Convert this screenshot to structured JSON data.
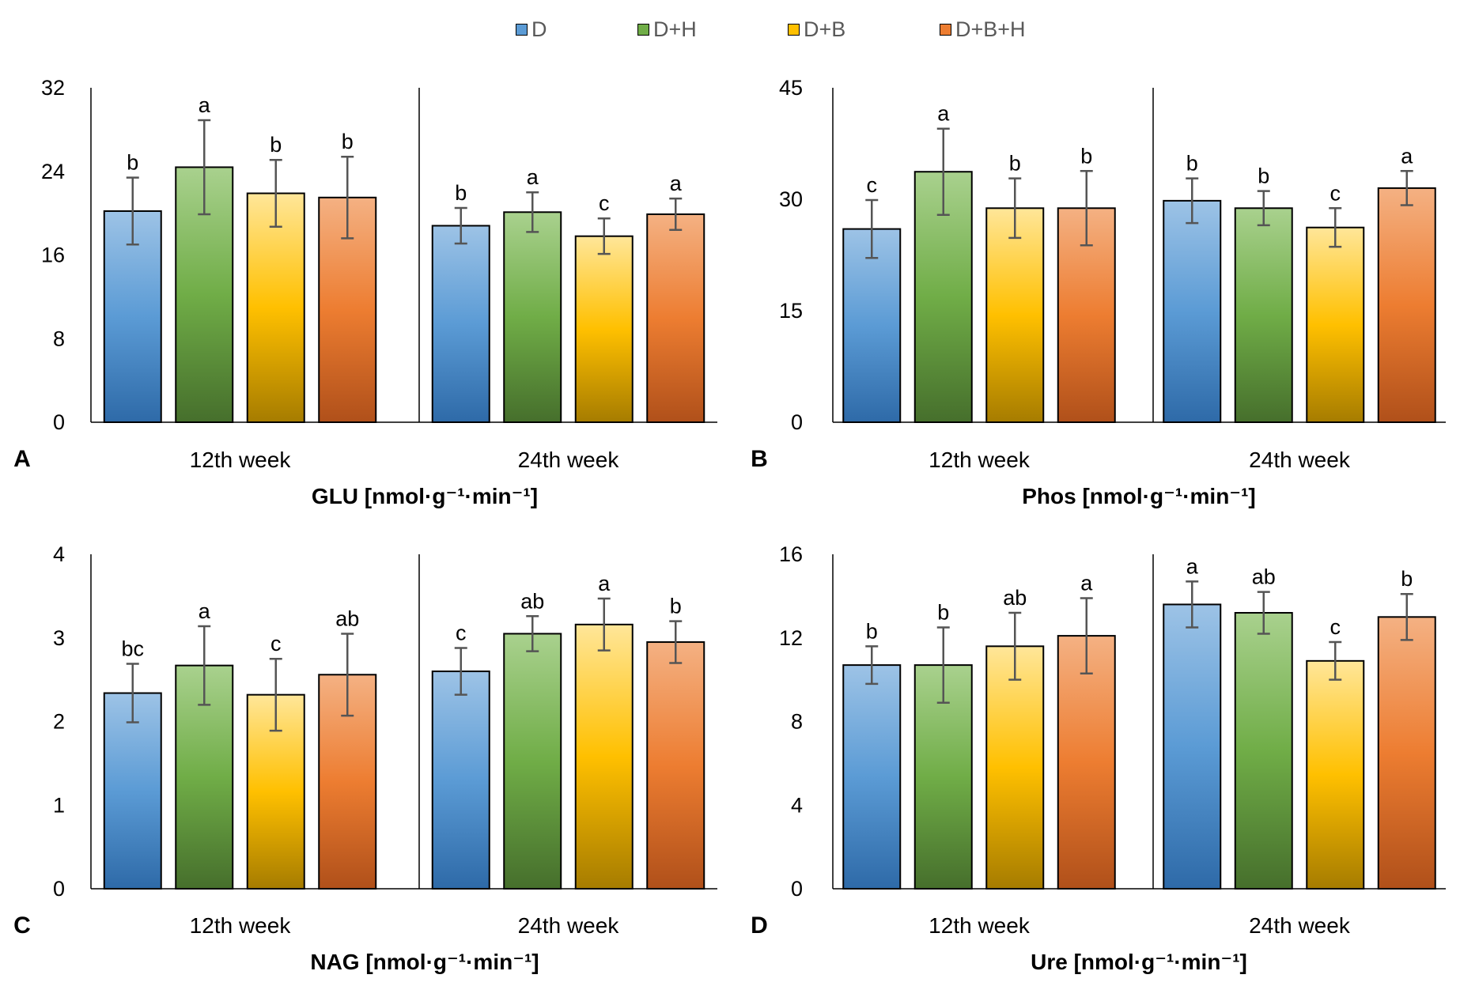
{
  "legend": [
    {
      "label": "D",
      "color": "#5b9bd5"
    },
    {
      "label": "D+H",
      "color": "#70ad47"
    },
    {
      "label": "D+B",
      "color": "#ffc000"
    },
    {
      "label": "D+B+H",
      "color": "#ed7d31"
    }
  ],
  "series_colors": {
    "D": {
      "top": "#9dc3e6",
      "mid": "#5b9bd5",
      "bottom": "#2e6aa8"
    },
    "D+H": {
      "top": "#a9d18e",
      "mid": "#70ad47",
      "bottom": "#466f2c"
    },
    "D+B": {
      "top": "#ffe699",
      "mid": "#ffc000",
      "bottom": "#a67c00"
    },
    "D+B+H": {
      "top": "#f4b183",
      "mid": "#ed7d31",
      "bottom": "#b0501a"
    }
  },
  "chart_data": [
    {
      "type": "bar",
      "panel_letter": "A",
      "title": "GLU [nmol·g⁻¹·min⁻¹]",
      "groups": [
        "12th week",
        "24th week"
      ],
      "series_names": [
        "D",
        "D+H",
        "D+B",
        "D+B+H"
      ],
      "ylim": [
        0,
        32
      ],
      "yticks": [
        "0",
        "8",
        "16",
        "24",
        "32"
      ],
      "tick_values": [
        0,
        8,
        16,
        24,
        32
      ],
      "values": [
        [
          20.2,
          24.4,
          21.9,
          21.5
        ],
        [
          18.8,
          20.1,
          17.8,
          19.9
        ]
      ],
      "errors": [
        [
          3.2,
          4.5,
          3.2,
          3.9
        ],
        [
          1.7,
          1.9,
          1.7,
          1.5
        ]
      ],
      "letters": [
        [
          "b",
          "a",
          "b",
          "b"
        ],
        [
          "b",
          "a",
          "c",
          "a"
        ]
      ]
    },
    {
      "type": "bar",
      "panel_letter": "B",
      "title": "Phos [nmol·g⁻¹·min⁻¹]",
      "groups": [
        "12th week",
        "24th week"
      ],
      "series_names": [
        "D",
        "D+H",
        "D+B",
        "D+B+H"
      ],
      "ylim": [
        0,
        45
      ],
      "yticks": [
        "0",
        "15",
        "30",
        "45"
      ],
      "tick_values": [
        0,
        15,
        30,
        45
      ],
      "values": [
        [
          26.0,
          33.7,
          28.8,
          28.8
        ],
        [
          29.8,
          28.8,
          26.2,
          31.5
        ]
      ],
      "errors": [
        [
          3.9,
          5.8,
          4.0,
          5.0
        ],
        [
          3.0,
          2.3,
          2.6,
          2.3
        ]
      ],
      "letters": [
        [
          "c",
          "a",
          "b",
          "b"
        ],
        [
          "b",
          "b",
          "c",
          "a"
        ]
      ]
    },
    {
      "type": "bar",
      "panel_letter": "C",
      "title": "NAG [nmol·g⁻¹·min⁻¹]",
      "groups": [
        "12th week",
        "24th week"
      ],
      "series_names": [
        "D",
        "D+H",
        "D+B",
        "D+B+H"
      ],
      "ylim": [
        0,
        4
      ],
      "yticks": [
        "0",
        "1",
        "2",
        "3",
        "4"
      ],
      "tick_values": [
        0,
        1,
        2,
        3,
        4
      ],
      "values": [
        [
          2.34,
          2.67,
          2.32,
          2.56
        ],
        [
          2.6,
          3.05,
          3.16,
          2.95
        ]
      ],
      "errors": [
        [
          0.35,
          0.47,
          0.43,
          0.49
        ],
        [
          0.28,
          0.21,
          0.31,
          0.25
        ]
      ],
      "letters": [
        [
          "bc",
          "a",
          "c",
          "ab"
        ],
        [
          "c",
          "ab",
          "a",
          "b"
        ]
      ]
    },
    {
      "type": "bar",
      "panel_letter": "D",
      "title": "Ure [nmol·g⁻¹·min⁻¹]",
      "groups": [
        "12th week",
        "24th week"
      ],
      "series_names": [
        "D",
        "D+H",
        "D+B",
        "D+B+H"
      ],
      "ylim": [
        0,
        16
      ],
      "yticks": [
        "0",
        "4",
        "8",
        "12",
        "16"
      ],
      "tick_values": [
        0,
        4,
        8,
        12,
        16
      ],
      "values": [
        [
          10.7,
          10.7,
          11.6,
          12.1
        ],
        [
          13.6,
          13.2,
          10.9,
          13.0
        ]
      ],
      "errors": [
        [
          0.9,
          1.8,
          1.6,
          1.8
        ],
        [
          1.1,
          1.0,
          0.9,
          1.1
        ]
      ],
      "letters": [
        [
          "b",
          "b",
          "ab",
          "a"
        ],
        [
          "a",
          "ab",
          "c",
          "b"
        ]
      ]
    }
  ]
}
